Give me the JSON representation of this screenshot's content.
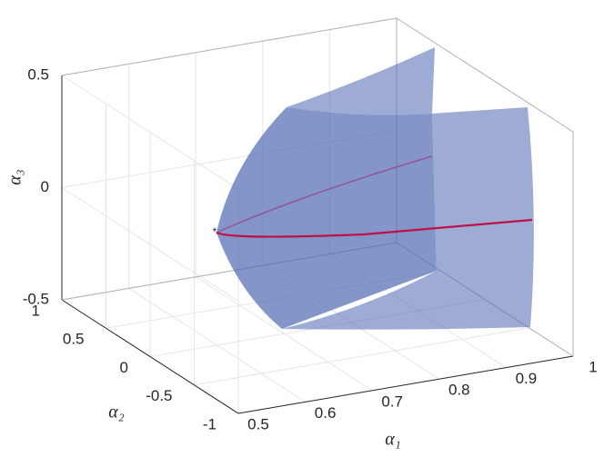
{
  "chart_data": {
    "type": "surface3d",
    "xlabel": "α₁",
    "ylabel": "α₂",
    "zlabel": "α₃",
    "xlim": [
      0.5,
      1
    ],
    "ylim": [
      -1,
      1
    ],
    "zlim": [
      -0.5,
      0.5
    ],
    "xticks": [
      0.5,
      0.6,
      0.7,
      0.8,
      0.9,
      1
    ],
    "yticks": [
      -1,
      -0.5,
      0,
      0.5,
      1
    ],
    "zticks": [
      -0.5,
      0,
      0.5
    ],
    "grid": true,
    "surface_color": "#4f68b4",
    "curve_color": "#c0104a"
  }
}
